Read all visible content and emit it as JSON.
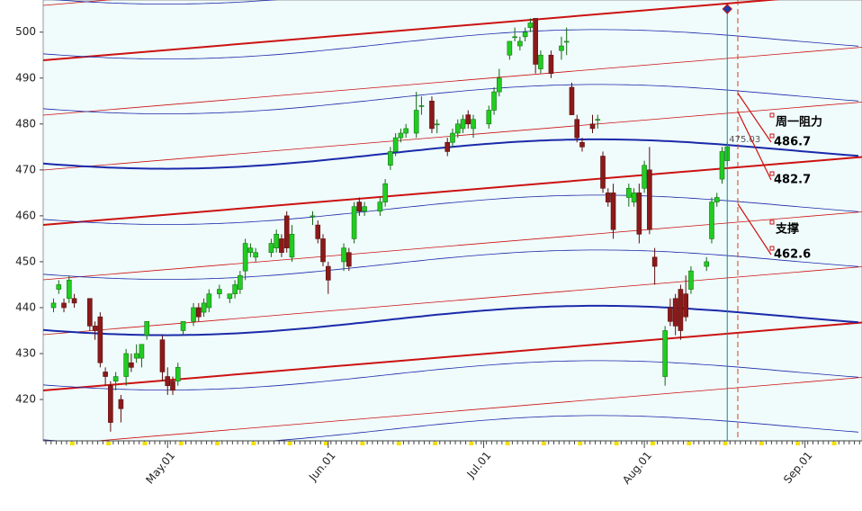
{
  "chart_data": {
    "type": "candlestick",
    "x": [
      "04-09",
      "04-10",
      "04-11",
      "04-12",
      "04-13",
      "04-16",
      "04-17",
      "04-18",
      "04-19",
      "04-20",
      "04-21",
      "04-22",
      "04-23",
      "04-24",
      "04-25",
      "04-26",
      "04-27",
      "04-30",
      "05-01",
      "05-02",
      "05-03",
      "05-04",
      "05-06",
      "05-07",
      "05-08",
      "05-09",
      "05-11",
      "05-13",
      "05-14",
      "05-15",
      "05-16",
      "05-17",
      "05-18",
      "05-21",
      "05-22",
      "05-23",
      "05-24",
      "05-25",
      "05-29",
      "05-30",
      "05-31",
      "06-01",
      "06-04",
      "06-05",
      "06-06",
      "06-07",
      "06-08",
      "06-11",
      "06-12",
      "06-13",
      "06-14",
      "06-15",
      "06-16",
      "06-18",
      "06-19",
      "06-21",
      "06-22",
      "06-24",
      "06-25",
      "06-26",
      "06-27",
      "06-28",
      "06-29",
      "07-02",
      "07-03",
      "07-04",
      "07-06",
      "07-07",
      "07-08",
      "07-09",
      "07-10",
      "07-11",
      "07-12",
      "07-14",
      "07-16",
      "07-17",
      "07-18",
      "07-19",
      "07-20",
      "07-22",
      "07-23",
      "07-24",
      "07-25",
      "07-26",
      "07-29",
      "07-30",
      "07-31",
      "08-01",
      "08-02",
      "08-03",
      "08-05",
      "08-06",
      "08-07",
      "08-08",
      "08-09",
      "08-10",
      "08-13",
      "08-14",
      "08-15",
      "08-16",
      "08-17"
    ],
    "open": [
      440,
      444,
      441,
      442,
      442,
      442,
      436,
      438,
      426,
      423,
      424,
      420,
      425,
      428,
      429,
      429,
      434,
      433,
      425,
      424,
      424,
      435,
      437,
      440,
      439,
      440,
      443,
      442,
      443,
      444,
      448,
      452,
      451,
      452,
      453,
      455,
      460,
      451,
      460,
      458,
      455,
      449,
      450,
      452,
      455,
      463,
      461,
      461,
      463,
      471,
      474,
      477,
      478,
      478,
      484,
      485,
      480,
      476,
      476,
      478,
      479,
      482,
      479,
      480,
      483,
      487,
      495,
      499,
      497,
      499,
      501,
      503,
      492,
      495,
      496,
      498,
      488,
      481,
      476,
      480,
      481,
      473,
      465,
      465,
      464,
      463,
      465,
      466,
      470,
      451,
      425,
      440,
      442,
      444,
      443,
      444,
      449,
      455,
      463,
      468,
      472
    ],
    "high": [
      442,
      446,
      442,
      447,
      443,
      442,
      437,
      439,
      427,
      424,
      426,
      421,
      431,
      430,
      432,
      432,
      437,
      434,
      427,
      425,
      428,
      437,
      441,
      441,
      442,
      444,
      445,
      443,
      446,
      448,
      455,
      454,
      453,
      455,
      457,
      456,
      461,
      458,
      461,
      459,
      456,
      450,
      454,
      453,
      463,
      464,
      463,
      464,
      468,
      475,
      478,
      479,
      480,
      487,
      486,
      486,
      481,
      477,
      479,
      481,
      482,
      483,
      482,
      484,
      488,
      492,
      498,
      501,
      499,
      501,
      503,
      503,
      496,
      496,
      499,
      501,
      489,
      482,
      477,
      482,
      482,
      474,
      466,
      467,
      467,
      466,
      467,
      472,
      475,
      453,
      436,
      442,
      443,
      445,
      447,
      449,
      451,
      464,
      465,
      475,
      476
    ],
    "low": [
      439,
      443,
      439,
      441,
      440,
      435,
      433,
      427,
      423,
      413,
      422,
      415,
      423,
      426,
      428,
      427,
      433,
      424,
      421,
      421,
      423,
      434,
      436,
      437,
      438,
      439,
      442,
      441,
      442,
      443,
      446,
      451,
      450,
      451,
      452,
      451,
      452,
      450,
      458,
      454,
      449,
      443,
      448,
      448,
      454,
      460,
      460,
      460,
      462,
      470,
      473,
      476,
      477,
      477,
      482,
      478,
      478,
      473,
      475,
      477,
      478,
      479,
      477,
      479,
      482,
      486,
      494,
      498,
      496,
      498,
      500,
      491,
      491,
      490,
      494,
      495,
      482,
      476,
      474,
      478,
      479,
      465,
      462,
      455,
      462,
      462,
      454,
      465,
      456,
      445,
      423,
      436,
      434,
      433,
      437,
      443,
      448,
      454,
      462,
      467,
      471
    ],
    "close": [
      441,
      445,
      440,
      446,
      441,
      436,
      435,
      428,
      425,
      415,
      425,
      418,
      430,
      427,
      430,
      432,
      437,
      426,
      423,
      422,
      427,
      437,
      440,
      438,
      441,
      443,
      444,
      443,
      445,
      447,
      454,
      453,
      452,
      454,
      456,
      452,
      453,
      456,
      460,
      455,
      450,
      446,
      453,
      449,
      462,
      461,
      462,
      463,
      467,
      474,
      477,
      478,
      479,
      483,
      484,
      479,
      480,
      474,
      478,
      480,
      481,
      480,
      481,
      483,
      487,
      490,
      498,
      499,
      498,
      500,
      502,
      493,
      495,
      491,
      497,
      498,
      482,
      477,
      475,
      479,
      481,
      466,
      463,
      457,
      466,
      465,
      456,
      471,
      457,
      449,
      435,
      437,
      436,
      435,
      438,
      448,
      450,
      463,
      464,
      474,
      475.03
    ],
    "xlim": [
      "04-07",
      "09-12"
    ],
    "xticks": [
      {
        "value": "05-01",
        "label": "May.01"
      },
      {
        "value": "06-01",
        "label": "Jun.01"
      },
      {
        "value": "07-01",
        "label": "Jul.01"
      },
      {
        "value": "08-01",
        "label": "Aug.01"
      },
      {
        "value": "09-01",
        "label": "Sep.01"
      }
    ],
    "ylim": [
      411,
      507
    ],
    "yticks": [
      420,
      430,
      440,
      450,
      460,
      470,
      480,
      490,
      500
    ],
    "up_color": "#22cc22",
    "down_color": "#8b1a1a",
    "resistance_label": "周一阻力",
    "support_label": "支撑",
    "levels": [
      486.7,
      482.7,
      462.6
    ]
  }
}
